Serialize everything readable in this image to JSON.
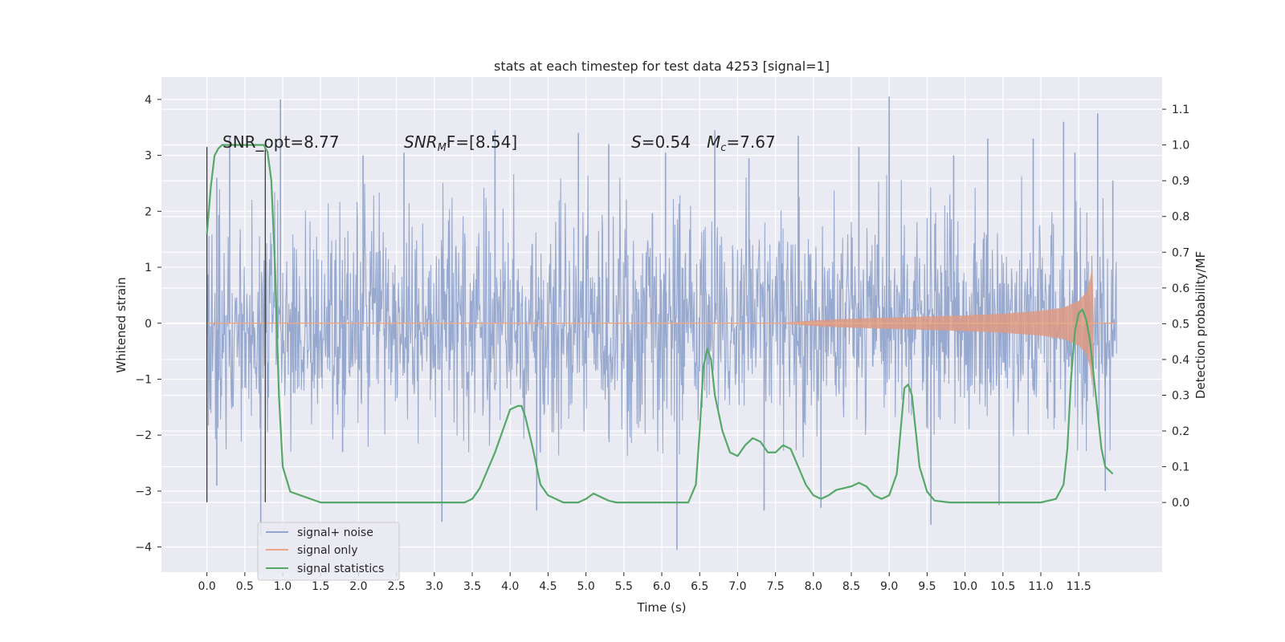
{
  "chart_data": {
    "type": "line",
    "title": "stats at each timestep for test data 4253 [signal=1]",
    "xlabel": "Time (s)",
    "ylabel": "Whitened strain",
    "y2label": "Detection probability/MF",
    "xlim": [
      -0.6,
      12.6
    ],
    "ylim": [
      -4.45,
      4.4
    ],
    "y2lim": [
      -0.195,
      1.19
    ],
    "x_ticks": [
      0.0,
      0.5,
      1.0,
      1.5,
      2.0,
      2.5,
      3.0,
      3.5,
      4.0,
      4.5,
      5.0,
      5.5,
      6.0,
      6.5,
      7.0,
      7.5,
      8.0,
      8.5,
      9.0,
      9.5,
      10.0,
      10.5,
      11.0,
      11.5
    ],
    "x_tick_labels": [
      "0.0",
      "0.5",
      "1.0",
      "1.5",
      "2.0",
      "2.5",
      "3.0",
      "3.5",
      "4.0",
      "4.5",
      "5.0",
      "5.5",
      "6.0",
      "6.5",
      "7.0",
      "7.5",
      "8.0",
      "8.5",
      "9.0",
      "9.5",
      "10.0",
      "10.5",
      "11.0",
      "11.5"
    ],
    "y_ticks": [
      -4,
      -3,
      -2,
      -1,
      0,
      1,
      2,
      3,
      4
    ],
    "y_tick_labels": [
      "−4",
      "−3",
      "−2",
      "−1",
      "0",
      "1",
      "2",
      "3",
      "4"
    ],
    "y2_ticks": [
      0.0,
      0.1,
      0.2,
      0.3,
      0.4,
      0.5,
      0.6,
      0.7,
      0.8,
      0.9,
      1.0,
      1.1
    ],
    "y2_tick_labels": [
      "0.0",
      "0.1",
      "0.2",
      "0.3",
      "0.4",
      "0.5",
      "0.6",
      "0.7",
      "0.8",
      "0.9",
      "1.0",
      "1.1"
    ],
    "grid": true,
    "legend": {
      "placement": "lower-left",
      "entries": [
        "signal+ noise",
        "signal only",
        "signal statistics"
      ]
    },
    "annotations": {
      "snr_opt": "SNR_opt=8.77",
      "snr_mf_label": "SNR",
      "snr_mf_sub": "M",
      "snr_mf_rest": "F=[8.54]",
      "s_label": "S",
      "s_value": "=0.54",
      "mc_label": "M",
      "mc_sub": "c",
      "mc_value": "=7.67"
    },
    "vertical_lines": [
      0.0,
      0.77
    ],
    "vertical_line_range": [
      -3.2,
      3.15
    ],
    "series": [
      {
        "name": "signal+ noise",
        "axis": "left",
        "color": "#94a5cc",
        "description_kind": "noise",
        "x_range": [
          0.0,
          12.0
        ],
        "typical_envelope": [
          -2.0,
          2.5
        ],
        "peaks": [
          [
            0.13,
            -2.9
          ],
          [
            0.13,
            2.6
          ],
          [
            0.3,
            3.35
          ],
          [
            0.71,
            -3.8
          ],
          [
            0.97,
            4.0
          ],
          [
            1.79,
            -2.3
          ],
          [
            2.06,
            3.0
          ],
          [
            2.6,
            3.05
          ],
          [
            3.1,
            -3.55
          ],
          [
            3.8,
            3.45
          ],
          [
            4.35,
            -3.35
          ],
          [
            4.9,
            3.4
          ],
          [
            5.3,
            3.2
          ],
          [
            6.05,
            3.05
          ],
          [
            6.2,
            -4.05
          ],
          [
            6.7,
            3.45
          ],
          [
            7.15,
            2.95
          ],
          [
            7.35,
            -3.35
          ],
          [
            7.8,
            3.35
          ],
          [
            8.1,
            -3.3
          ],
          [
            8.6,
            3.15
          ],
          [
            9.0,
            4.05
          ],
          [
            9.0,
            3.1
          ],
          [
            9.55,
            -3.6
          ],
          [
            9.85,
            3.0
          ],
          [
            10.3,
            3.3
          ],
          [
            10.45,
            -3.25
          ],
          [
            10.9,
            3.3
          ],
          [
            11.3,
            3.6
          ],
          [
            11.45,
            3.05
          ],
          [
            11.75,
            3.75
          ],
          [
            11.85,
            -3.0
          ],
          [
            11.95,
            2.55
          ]
        ]
      },
      {
        "name": "signal only",
        "axis": "left",
        "color": "#dd8452",
        "envelope_x": [
          7.5,
          8.0,
          8.5,
          9.0,
          9.5,
          10.0,
          10.5,
          11.0,
          11.3,
          11.5,
          11.6,
          11.65,
          11.68
        ],
        "envelope_amp": [
          0.0,
          0.05,
          0.08,
          0.1,
          0.12,
          0.14,
          0.17,
          0.22,
          0.28,
          0.4,
          0.55,
          0.8,
          1.0
        ]
      },
      {
        "name": "signal statistics",
        "axis": "right",
        "color": "#55a868",
        "x": [
          0.0,
          0.05,
          0.1,
          0.15,
          0.2,
          0.3,
          0.4,
          0.5,
          0.6,
          0.7,
          0.75,
          0.8,
          0.85,
          0.9,
          0.95,
          1.0,
          1.1,
          1.5,
          2.0,
          2.5,
          3.0,
          3.4,
          3.5,
          3.6,
          3.7,
          3.8,
          3.9,
          4.0,
          4.1,
          4.15,
          4.2,
          4.3,
          4.4,
          4.5,
          4.6,
          4.7,
          4.8,
          4.9,
          5.0,
          5.1,
          5.2,
          5.3,
          5.4,
          5.5,
          5.7,
          6.0,
          6.2,
          6.35,
          6.45,
          6.5,
          6.55,
          6.6,
          6.65,
          6.7,
          6.8,
          6.9,
          7.0,
          7.1,
          7.2,
          7.3,
          7.4,
          7.5,
          7.6,
          7.7,
          7.8,
          7.9,
          8.0,
          8.1,
          8.2,
          8.3,
          8.4,
          8.5,
          8.6,
          8.7,
          8.8,
          8.9,
          9.0,
          9.1,
          9.15,
          9.2,
          9.25,
          9.3,
          9.35,
          9.4,
          9.5,
          9.6,
          9.8,
          10.0,
          10.5,
          11.0,
          11.2,
          11.3,
          11.35,
          11.4,
          11.45,
          11.5,
          11.55,
          11.6,
          11.65,
          11.7,
          11.75,
          11.8,
          11.85,
          11.9,
          11.95
        ],
        "y": [
          0.75,
          0.88,
          0.97,
          0.99,
          1.0,
          1.0,
          1.0,
          1.0,
          1.0,
          1.0,
          1.0,
          0.98,
          0.9,
          0.65,
          0.3,
          0.1,
          0.03,
          0.0,
          0.0,
          0.0,
          0.0,
          0.0,
          0.01,
          0.04,
          0.09,
          0.14,
          0.2,
          0.26,
          0.27,
          0.27,
          0.24,
          0.15,
          0.05,
          0.02,
          0.01,
          0.0,
          0.0,
          0.0,
          0.01,
          0.025,
          0.015,
          0.005,
          0.0,
          0.0,
          0.0,
          0.0,
          0.0,
          0.0,
          0.05,
          0.2,
          0.38,
          0.43,
          0.4,
          0.3,
          0.2,
          0.14,
          0.13,
          0.16,
          0.18,
          0.17,
          0.14,
          0.14,
          0.16,
          0.15,
          0.1,
          0.05,
          0.02,
          0.01,
          0.02,
          0.035,
          0.04,
          0.045,
          0.055,
          0.045,
          0.02,
          0.01,
          0.02,
          0.08,
          0.2,
          0.32,
          0.33,
          0.3,
          0.2,
          0.1,
          0.03,
          0.005,
          0.0,
          0.0,
          0.0,
          0.0,
          0.01,
          0.05,
          0.15,
          0.35,
          0.48,
          0.53,
          0.54,
          0.51,
          0.45,
          0.35,
          0.25,
          0.15,
          0.1,
          0.09,
          0.08
        ]
      }
    ]
  }
}
